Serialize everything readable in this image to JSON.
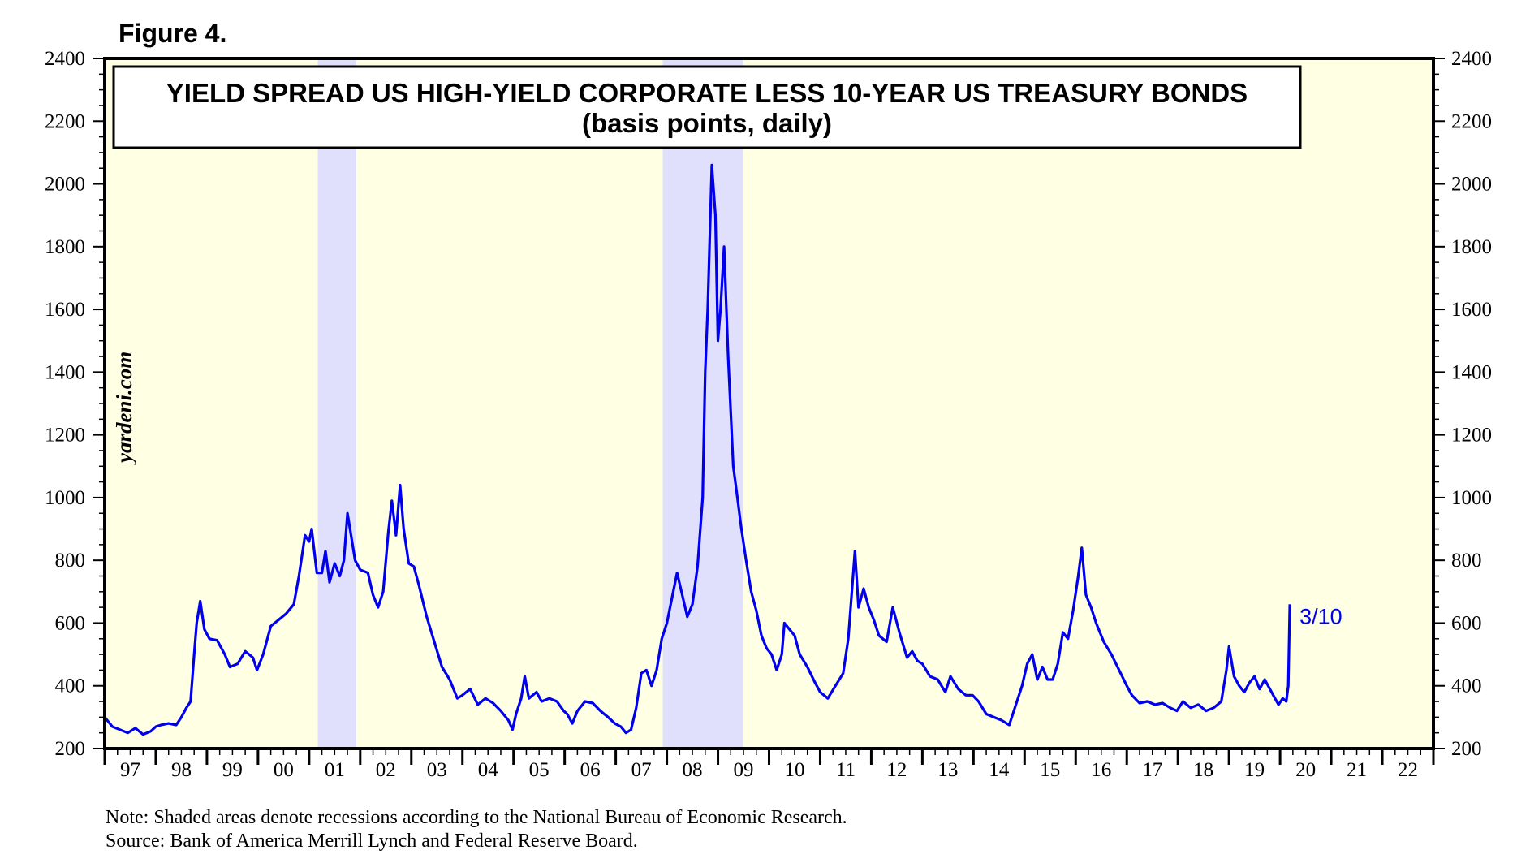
{
  "figure_label": "Figure 4.",
  "watermark": "yardeni.com",
  "notes": [
    "Note: Shaded areas denote recessions according to the National Bureau of Economic Research.",
    "Source: Bank of America Merrill Lynch and Federal Reserve Board."
  ],
  "colors": {
    "plot_background": "#ffffe4",
    "recession_shading": "#e0e0fc",
    "series_line": "#0000ee",
    "annotation": "#0000ee"
  },
  "chart_data": {
    "type": "line",
    "title": "YIELD SPREAD US HIGH-YIELD CORPORATE LESS 10-YEAR US TREASURY BONDS",
    "subtitle": "(basis points, daily)",
    "xlabel": "",
    "ylabel": "",
    "xlim": [
      1997.0,
      2023.0
    ],
    "ylim": [
      200,
      2400
    ],
    "y_ticks": [
      200,
      400,
      600,
      800,
      1000,
      1200,
      1400,
      1600,
      1800,
      2000,
      2200,
      2400
    ],
    "x_tick_labels": [
      "97",
      "98",
      "99",
      "00",
      "01",
      "02",
      "03",
      "04",
      "05",
      "06",
      "07",
      "08",
      "09",
      "10",
      "11",
      "12",
      "13",
      "14",
      "15",
      "16",
      "17",
      "18",
      "19",
      "20",
      "21",
      "22"
    ],
    "grid": false,
    "y_axis_both_sides": true,
    "recessions": [
      {
        "start": 2001.17,
        "end": 2001.92
      },
      {
        "start": 2007.92,
        "end": 2009.5
      }
    ],
    "series": [
      {
        "values": [
          [
            1997.0,
            300
          ],
          [
            1997.15,
            270
          ],
          [
            1997.3,
            260
          ],
          [
            1997.45,
            250
          ],
          [
            1997.6,
            265
          ],
          [
            1997.75,
            245
          ],
          [
            1997.9,
            255
          ],
          [
            1998.0,
            270
          ],
          [
            1998.1,
            275
          ],
          [
            1998.25,
            280
          ],
          [
            1998.4,
            275
          ],
          [
            1998.5,
            300
          ],
          [
            1998.6,
            330
          ],
          [
            1998.68,
            350
          ],
          [
            1998.75,
            500
          ],
          [
            1998.8,
            600
          ],
          [
            1998.87,
            670
          ],
          [
            1998.95,
            580
          ],
          [
            1999.05,
            550
          ],
          [
            1999.2,
            545
          ],
          [
            1999.35,
            500
          ],
          [
            1999.45,
            460
          ],
          [
            1999.6,
            470
          ],
          [
            1999.75,
            510
          ],
          [
            1999.9,
            490
          ],
          [
            1999.98,
            450
          ],
          [
            2000.1,
            500
          ],
          [
            2000.25,
            590
          ],
          [
            2000.4,
            610
          ],
          [
            2000.55,
            630
          ],
          [
            2000.7,
            660
          ],
          [
            2000.8,
            750
          ],
          [
            2000.92,
            880
          ],
          [
            2001.0,
            860
          ],
          [
            2001.05,
            900
          ],
          [
            2001.15,
            760
          ],
          [
            2001.25,
            760
          ],
          [
            2001.32,
            830
          ],
          [
            2001.4,
            730
          ],
          [
            2001.5,
            790
          ],
          [
            2001.6,
            750
          ],
          [
            2001.68,
            800
          ],
          [
            2001.75,
            950
          ],
          [
            2001.82,
            880
          ],
          [
            2001.9,
            800
          ],
          [
            2002.0,
            770
          ],
          [
            2002.15,
            760
          ],
          [
            2002.25,
            690
          ],
          [
            2002.35,
            650
          ],
          [
            2002.45,
            700
          ],
          [
            2002.55,
            890
          ],
          [
            2002.62,
            990
          ],
          [
            2002.7,
            880
          ],
          [
            2002.78,
            1040
          ],
          [
            2002.85,
            900
          ],
          [
            2002.95,
            790
          ],
          [
            2003.05,
            780
          ],
          [
            2003.15,
            720
          ],
          [
            2003.3,
            620
          ],
          [
            2003.45,
            540
          ],
          [
            2003.6,
            460
          ],
          [
            2003.75,
            420
          ],
          [
            2003.9,
            360
          ],
          [
            2004.0,
            370
          ],
          [
            2004.15,
            390
          ],
          [
            2004.3,
            340
          ],
          [
            2004.45,
            360
          ],
          [
            2004.6,
            345
          ],
          [
            2004.75,
            320
          ],
          [
            2004.9,
            290
          ],
          [
            2004.98,
            260
          ],
          [
            2005.05,
            310
          ],
          [
            2005.15,
            360
          ],
          [
            2005.22,
            430
          ],
          [
            2005.3,
            360
          ],
          [
            2005.45,
            380
          ],
          [
            2005.55,
            350
          ],
          [
            2005.7,
            360
          ],
          [
            2005.85,
            350
          ],
          [
            2005.98,
            320
          ],
          [
            2006.05,
            310
          ],
          [
            2006.15,
            280
          ],
          [
            2006.25,
            320
          ],
          [
            2006.4,
            350
          ],
          [
            2006.55,
            345
          ],
          [
            2006.7,
            320
          ],
          [
            2006.85,
            300
          ],
          [
            2006.98,
            280
          ],
          [
            2007.1,
            270
          ],
          [
            2007.2,
            250
          ],
          [
            2007.3,
            260
          ],
          [
            2007.4,
            330
          ],
          [
            2007.5,
            440
          ],
          [
            2007.6,
            450
          ],
          [
            2007.7,
            400
          ],
          [
            2007.8,
            450
          ],
          [
            2007.9,
            550
          ],
          [
            2008.0,
            600
          ],
          [
            2008.1,
            680
          ],
          [
            2008.2,
            760
          ],
          [
            2008.3,
            690
          ],
          [
            2008.4,
            620
          ],
          [
            2008.5,
            660
          ],
          [
            2008.6,
            780
          ],
          [
            2008.7,
            1000
          ],
          [
            2008.75,
            1400
          ],
          [
            2008.8,
            1600
          ],
          [
            2008.88,
            2060
          ],
          [
            2008.95,
            1900
          ],
          [
            2009.0,
            1500
          ],
          [
            2009.05,
            1600
          ],
          [
            2009.12,
            1800
          ],
          [
            2009.2,
            1450
          ],
          [
            2009.3,
            1100
          ],
          [
            2009.38,
            1000
          ],
          [
            2009.45,
            910
          ],
          [
            2009.55,
            800
          ],
          [
            2009.65,
            700
          ],
          [
            2009.75,
            640
          ],
          [
            2009.85,
            560
          ],
          [
            2009.95,
            520
          ],
          [
            2010.05,
            500
          ],
          [
            2010.15,
            450
          ],
          [
            2010.25,
            500
          ],
          [
            2010.3,
            600
          ],
          [
            2010.4,
            580
          ],
          [
            2010.5,
            560
          ],
          [
            2010.6,
            500
          ],
          [
            2010.75,
            460
          ],
          [
            2010.9,
            410
          ],
          [
            2011.0,
            380
          ],
          [
            2011.15,
            360
          ],
          [
            2011.3,
            400
          ],
          [
            2011.45,
            440
          ],
          [
            2011.55,
            550
          ],
          [
            2011.62,
            700
          ],
          [
            2011.68,
            830
          ],
          [
            2011.75,
            650
          ],
          [
            2011.85,
            710
          ],
          [
            2011.95,
            650
          ],
          [
            2012.05,
            610
          ],
          [
            2012.15,
            560
          ],
          [
            2012.3,
            540
          ],
          [
            2012.42,
            650
          ],
          [
            2012.55,
            570
          ],
          [
            2012.7,
            490
          ],
          [
            2012.8,
            510
          ],
          [
            2012.9,
            480
          ],
          [
            2013.0,
            470
          ],
          [
            2013.15,
            430
          ],
          [
            2013.3,
            420
          ],
          [
            2013.45,
            380
          ],
          [
            2013.55,
            430
          ],
          [
            2013.7,
            390
          ],
          [
            2013.85,
            370
          ],
          [
            2013.98,
            370
          ],
          [
            2014.1,
            350
          ],
          [
            2014.25,
            310
          ],
          [
            2014.4,
            300
          ],
          [
            2014.55,
            290
          ],
          [
            2014.7,
            275
          ],
          [
            2014.85,
            350
          ],
          [
            2014.95,
            400
          ],
          [
            2015.05,
            470
          ],
          [
            2015.15,
            500
          ],
          [
            2015.25,
            420
          ],
          [
            2015.35,
            460
          ],
          [
            2015.45,
            420
          ],
          [
            2015.55,
            420
          ],
          [
            2015.65,
            470
          ],
          [
            2015.75,
            570
          ],
          [
            2015.85,
            550
          ],
          [
            2015.95,
            640
          ],
          [
            2016.05,
            750
          ],
          [
            2016.12,
            840
          ],
          [
            2016.2,
            690
          ],
          [
            2016.3,
            650
          ],
          [
            2016.4,
            600
          ],
          [
            2016.55,
            540
          ],
          [
            2016.7,
            500
          ],
          [
            2016.85,
            450
          ],
          [
            2017.0,
            400
          ],
          [
            2017.1,
            370
          ],
          [
            2017.25,
            345
          ],
          [
            2017.4,
            350
          ],
          [
            2017.55,
            340
          ],
          [
            2017.7,
            345
          ],
          [
            2017.85,
            330
          ],
          [
            2017.98,
            320
          ],
          [
            2018.1,
            350
          ],
          [
            2018.25,
            330
          ],
          [
            2018.4,
            340
          ],
          [
            2018.55,
            320
          ],
          [
            2018.7,
            330
          ],
          [
            2018.85,
            350
          ],
          [
            2018.95,
            450
          ],
          [
            2019.0,
            525
          ],
          [
            2019.1,
            430
          ],
          [
            2019.2,
            400
          ],
          [
            2019.3,
            380
          ],
          [
            2019.4,
            410
          ],
          [
            2019.5,
            430
          ],
          [
            2019.6,
            390
          ],
          [
            2019.7,
            420
          ],
          [
            2019.8,
            390
          ],
          [
            2019.9,
            360
          ],
          [
            2019.97,
            340
          ],
          [
            2020.05,
            360
          ],
          [
            2020.12,
            350
          ],
          [
            2020.16,
            400
          ],
          [
            2020.19,
            660
          ]
        ]
      }
    ],
    "annotations": [
      {
        "text": "3/10",
        "x": 2020.19,
        "y": 660
      }
    ]
  }
}
